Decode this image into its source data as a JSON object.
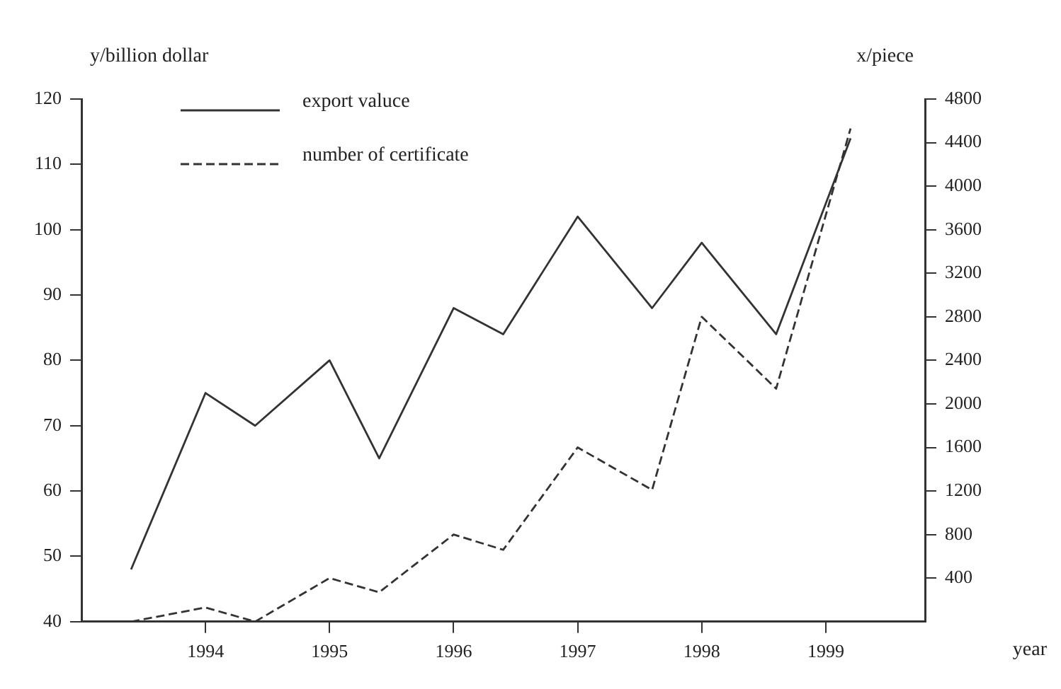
{
  "chart_data": {
    "type": "line",
    "xlabel": "year",
    "ylabel": "y/billion dollar",
    "y2label": "x/piece",
    "xlim": [
      1993,
      1999.8
    ],
    "xticks": [
      1994,
      1995,
      1996,
      1997,
      1998,
      1999
    ],
    "ylim": [
      40,
      120
    ],
    "yticks": [
      40,
      50,
      60,
      70,
      80,
      90,
      100,
      110,
      120
    ],
    "y2lim": [
      0,
      4800
    ],
    "y2ticks": [
      400,
      800,
      1200,
      1600,
      2000,
      2400,
      2800,
      3200,
      3600,
      4000,
      4400,
      4800
    ],
    "grid": false,
    "legend": "top left",
    "marker": "none",
    "series": [
      {
        "name": "export valuce",
        "color": "#333333",
        "line_style": "solid",
        "x": [
          1993.4,
          1994,
          1994.4,
          1995,
          1995.4,
          1996,
          1996.4,
          1997,
          1997.6,
          1998,
          1998.6,
          1999.2
        ],
        "values": [
          48,
          75,
          70,
          80,
          65,
          88,
          84,
          102,
          88,
          98,
          84,
          114
        ]
      },
      {
        "name": "number of certificate",
        "color": "#333333",
        "line_style": "dashed",
        "axis": "y2",
        "x": [
          1993.4,
          1994,
          1994.4,
          1995,
          1995.4,
          1996,
          1996.4,
          1997,
          1997.6,
          1998,
          1998.6,
          1999.2
        ],
        "values": [
          0,
          130,
          0,
          400,
          270,
          800,
          660,
          1600,
          1210,
          2800,
          2140,
          4530
        ]
      }
    ]
  }
}
